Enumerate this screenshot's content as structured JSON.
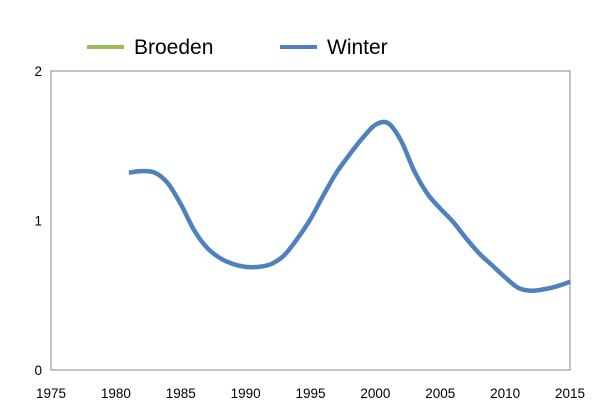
{
  "chart_data": {
    "type": "line",
    "title": "",
    "xlabel": "",
    "ylabel": "",
    "xlim": [
      1975,
      2015
    ],
    "ylim": [
      0,
      2
    ],
    "x_ticks": [
      "1975",
      "1980",
      "1985",
      "1990",
      "1995",
      "2000",
      "2005",
      "2010",
      "2015"
    ],
    "y_ticks": [
      "0",
      "1",
      "2"
    ],
    "grid": false,
    "legend_position": "top",
    "series": [
      {
        "name": "Broeden",
        "color": "#9bbb59",
        "x": [],
        "y": []
      },
      {
        "name": "Winter",
        "color": "#4f81bd",
        "x": [
          1981,
          1982,
          1983,
          1984,
          1985,
          1986,
          1987,
          1988,
          1989,
          1990,
          1991,
          1992,
          1993,
          1994,
          1995,
          1996,
          1997,
          1998,
          1999,
          2000,
          2001,
          2002,
          2003,
          2004,
          2005,
          2006,
          2007,
          2008,
          2009,
          2010,
          2011,
          2012,
          2013,
          2014,
          2015
        ],
        "y": [
          1.32,
          1.33,
          1.32,
          1.25,
          1.11,
          0.94,
          0.82,
          0.75,
          0.71,
          0.69,
          0.69,
          0.71,
          0.77,
          0.88,
          1.01,
          1.17,
          1.32,
          1.44,
          1.55,
          1.64,
          1.65,
          1.53,
          1.33,
          1.18,
          1.08,
          0.99,
          0.88,
          0.78,
          0.7,
          0.62,
          0.55,
          0.53,
          0.54,
          0.56,
          0.59
        ]
      }
    ]
  }
}
